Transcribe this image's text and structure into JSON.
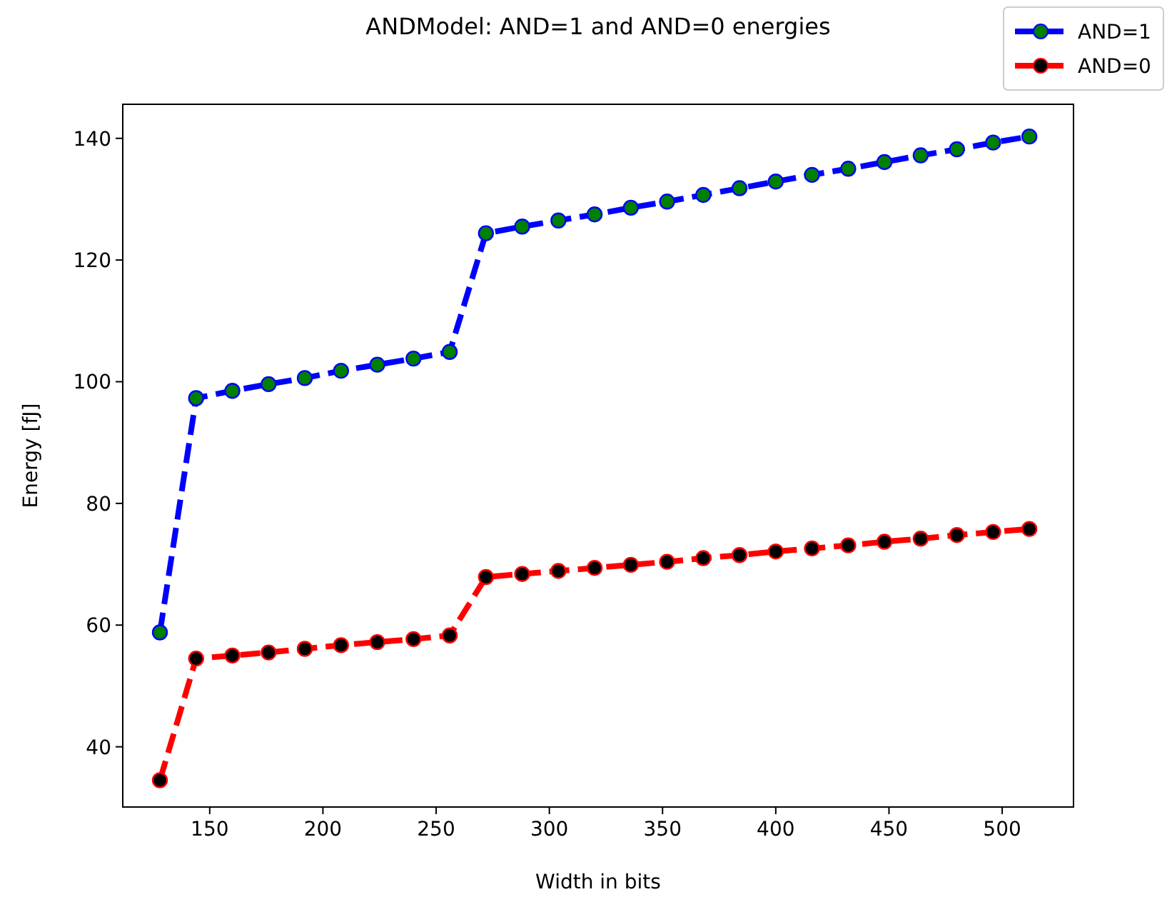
{
  "chart_data": {
    "type": "line",
    "title": "ANDModel: AND=1 and AND=0 energies",
    "xlabel": "Width in bits",
    "ylabel": "Energy [fJ]",
    "x": [
      128,
      144,
      160,
      176,
      192,
      208,
      224,
      240,
      256,
      272,
      288,
      304,
      320,
      336,
      352,
      368,
      384,
      400,
      416,
      432,
      448,
      464,
      480,
      496,
      512
    ],
    "series": [
      {
        "name": "AND=1",
        "color": "#0000ff",
        "values": [
          58.8,
          97.3,
          98.5,
          99.6,
          100.6,
          101.8,
          102.8,
          103.8,
          104.9,
          124.4,
          125.5,
          126.5,
          127.5,
          128.6,
          129.6,
          130.7,
          131.8,
          132.9,
          134.0,
          135.0,
          136.1,
          137.2,
          138.2,
          139.3,
          140.3
        ]
      },
      {
        "name": "AND=0",
        "color": "#ff0000",
        "values": [
          34.5,
          54.5,
          55.0,
          55.5,
          56.1,
          56.7,
          57.2,
          57.7,
          58.3,
          67.9,
          68.4,
          68.9,
          69.4,
          69.9,
          70.4,
          71.0,
          71.5,
          72.1,
          72.6,
          73.1,
          73.7,
          74.2,
          74.8,
          75.3,
          75.8
        ]
      }
    ],
    "xlim": [
      111.6,
      531.5
    ],
    "ylim": [
      30.1,
      145.6
    ],
    "xticks": [
      150,
      200,
      250,
      300,
      350,
      400,
      450,
      500
    ],
    "yticks": [
      40,
      60,
      80,
      100,
      120,
      140
    ],
    "grid": false,
    "legend": "top right",
    "marker": "circle",
    "line_style": "dashed"
  }
}
